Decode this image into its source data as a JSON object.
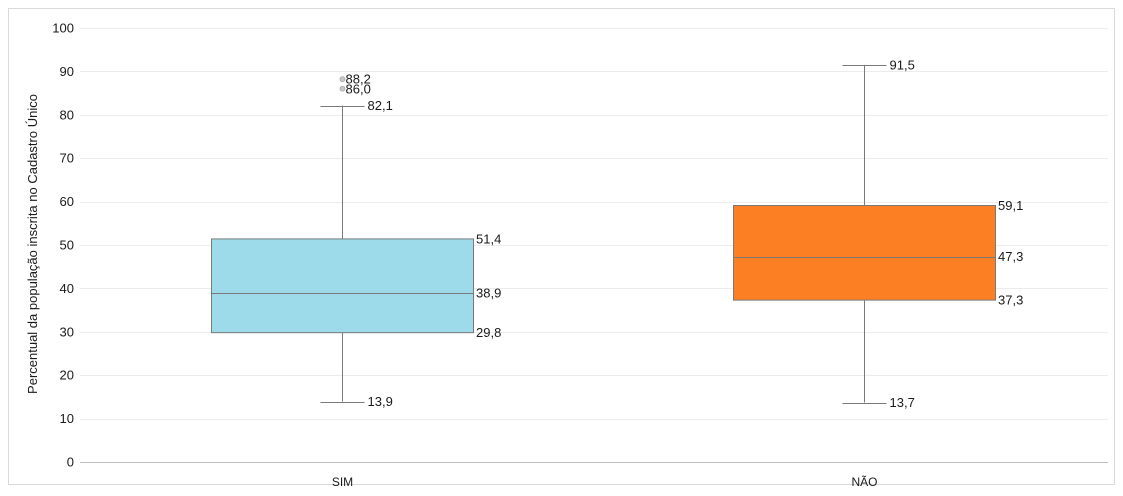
{
  "chart_data": {
    "type": "boxplot",
    "title": "",
    "xlabel": "",
    "ylabel": "Percentual da população inscrita no Cadastro Único",
    "ylim": [
      0,
      100
    ],
    "yticks": [
      "0",
      "10",
      "20",
      "30",
      "40",
      "50",
      "60",
      "70",
      "80",
      "90",
      "100"
    ],
    "grid": true,
    "legend": "none",
    "categories": [
      "SIM",
      "NÃO"
    ],
    "series": [
      {
        "category": "SIM",
        "color": "#9edbea",
        "min": 13.9,
        "q1": 29.8,
        "median": 38.9,
        "q3": 51.4,
        "max": 82.1,
        "outliers": [
          86.0,
          88.2
        ],
        "labels": {
          "min": "13,9",
          "q1": "29,8",
          "median": "38,9",
          "q3": "51,4",
          "max": "82,1",
          "outliers": [
            "86,0",
            "88,2"
          ]
        }
      },
      {
        "category": "NÃO",
        "color": "#fc7f24",
        "min": 13.7,
        "q1": 37.3,
        "median": 47.3,
        "q3": 59.1,
        "max": 91.5,
        "outliers": [],
        "labels": {
          "min": "13,7",
          "q1": "37,3",
          "median": "47,3",
          "q3": "59,1",
          "max": "91,5",
          "outliers": []
        }
      }
    ]
  }
}
